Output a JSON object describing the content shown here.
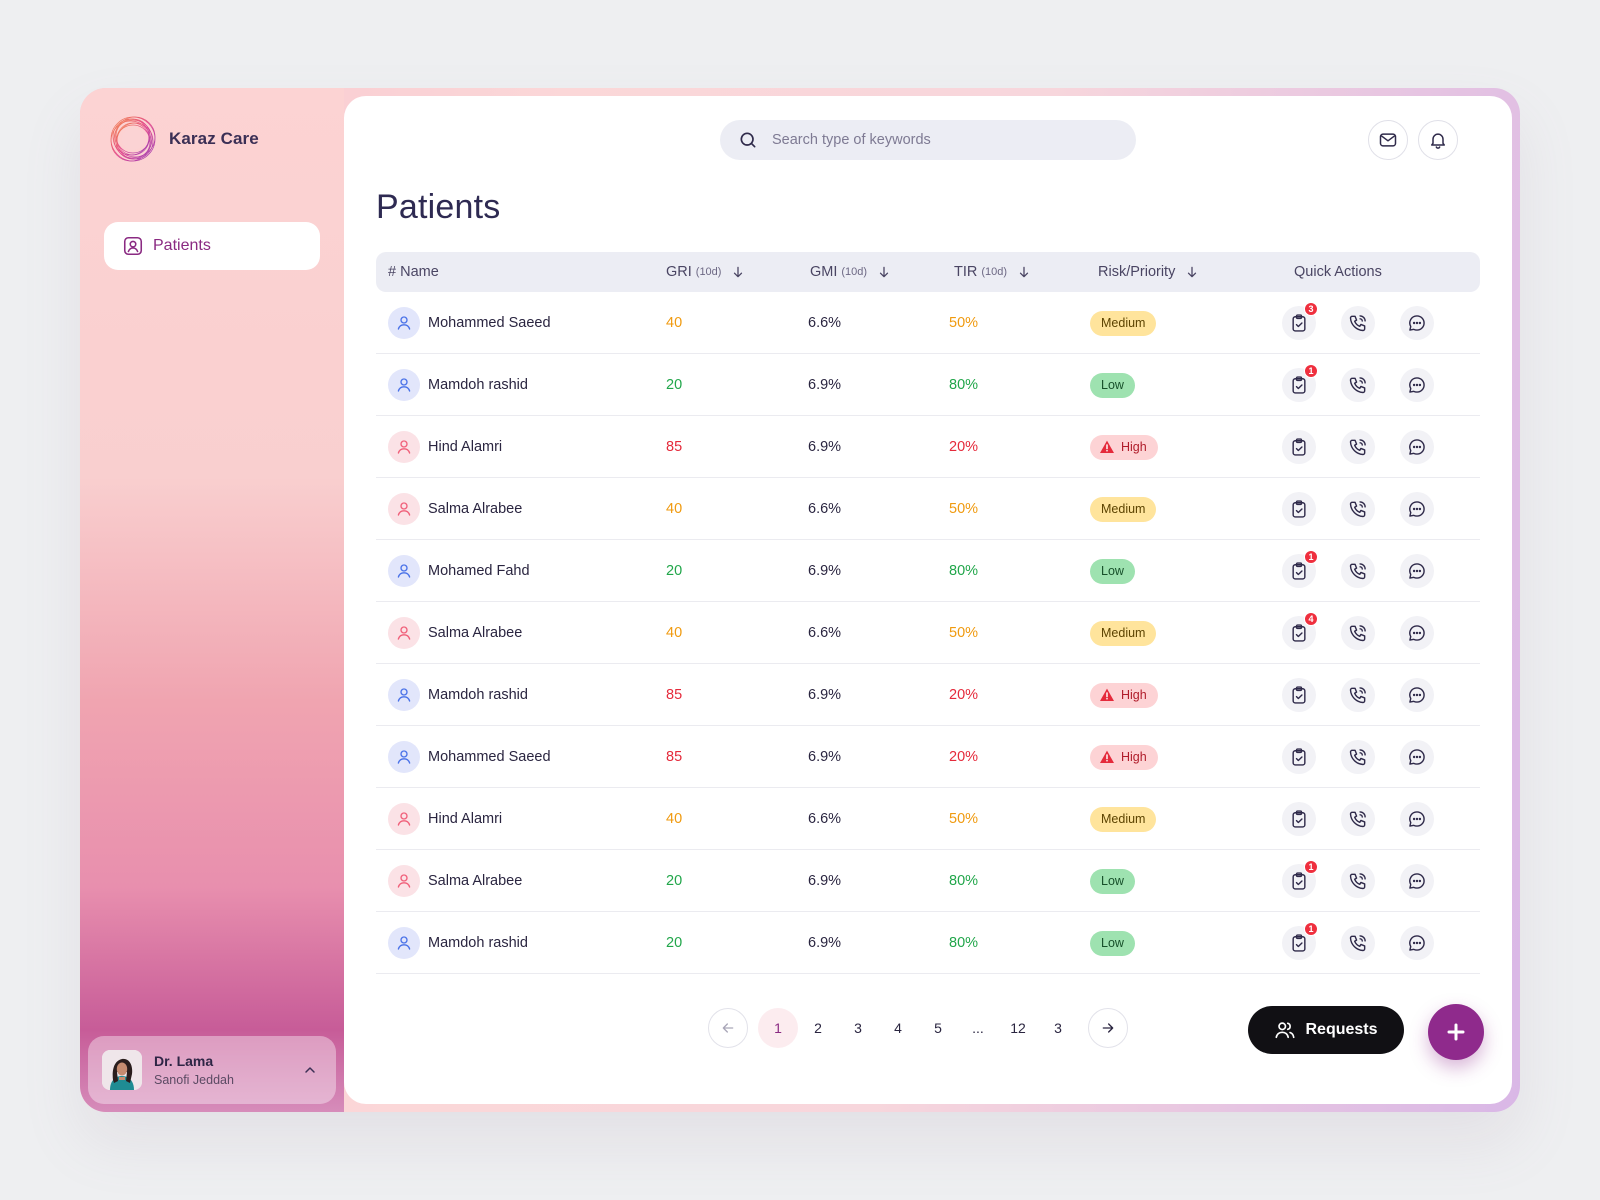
{
  "brand": {
    "name": "Karaz Care"
  },
  "sidebar": {
    "items": [
      {
        "label": "Patients",
        "icon": "patient-icon",
        "active": true
      }
    ]
  },
  "user": {
    "name": "Dr. Lama",
    "org": "Sanofi Jeddah"
  },
  "search": {
    "placeholder": "Search type of keywords"
  },
  "header": {
    "mail_icon": "mail-icon",
    "bell_icon": "bell-icon"
  },
  "page": {
    "title": "Patients"
  },
  "table": {
    "columns": {
      "name": "# Name",
      "gri": "GRI",
      "gri_sub": "(10d)",
      "gmi": "GMI",
      "gmi_sub": "(10d)",
      "tir": "TIR",
      "tir_sub": "(10d)",
      "risk": "Risk/Priority",
      "actions": "Quick Actions"
    },
    "rows": [
      {
        "name": "Mohammed Saeed",
        "gender": "male",
        "gri": "40",
        "gmi": "6.6%",
        "tir": "50%",
        "risk": "Medium",
        "tasks": "3"
      },
      {
        "name": "Mamdoh rashid",
        "gender": "male",
        "gri": "20",
        "gmi": "6.9%",
        "tir": "80%",
        "risk": "Low",
        "tasks": "1"
      },
      {
        "name": "Hind Alamri",
        "gender": "female",
        "gri": "85",
        "gmi": "6.9%",
        "tir": "20%",
        "risk": "High",
        "tasks": ""
      },
      {
        "name": "Salma Alrabee",
        "gender": "female",
        "gri": "40",
        "gmi": "6.6%",
        "tir": "50%",
        "risk": "Medium",
        "tasks": ""
      },
      {
        "name": "Mohamed Fahd",
        "gender": "male",
        "gri": "20",
        "gmi": "6.9%",
        "tir": "80%",
        "risk": "Low",
        "tasks": "1"
      },
      {
        "name": "Salma Alrabee",
        "gender": "female",
        "gri": "40",
        "gmi": "6.6%",
        "tir": "50%",
        "risk": "Medium",
        "tasks": "4"
      },
      {
        "name": "Mamdoh rashid",
        "gender": "male",
        "gri": "85",
        "gmi": "6.9%",
        "tir": "20%",
        "risk": "High",
        "tasks": ""
      },
      {
        "name": "Mohammed Saeed",
        "gender": "male",
        "gri": "85",
        "gmi": "6.9%",
        "tir": "20%",
        "risk": "High",
        "tasks": ""
      },
      {
        "name": "Hind Alamri",
        "gender": "female",
        "gri": "40",
        "gmi": "6.6%",
        "tir": "50%",
        "risk": "Medium",
        "tasks": ""
      },
      {
        "name": "Salma Alrabee",
        "gender": "female",
        "gri": "20",
        "gmi": "6.9%",
        "tir": "80%",
        "risk": "Low",
        "tasks": "1"
      },
      {
        "name": "Mamdoh rashid",
        "gender": "male",
        "gri": "20",
        "gmi": "6.9%",
        "tir": "80%",
        "risk": "Low",
        "tasks": "1"
      }
    ]
  },
  "pagination": {
    "pages": [
      "1",
      "2",
      "3",
      "4",
      "5",
      "...",
      "12",
      "3"
    ],
    "current": "1"
  },
  "actions": {
    "requests_label": "Requests"
  },
  "colors": {
    "accent": "#8f2a8c",
    "medium": "#ffe49c",
    "low": "#9ee2b0",
    "high": "#fdd3d5",
    "orange": "#f09a0f",
    "green": "#21a64a",
    "red": "#e52a3b"
  }
}
